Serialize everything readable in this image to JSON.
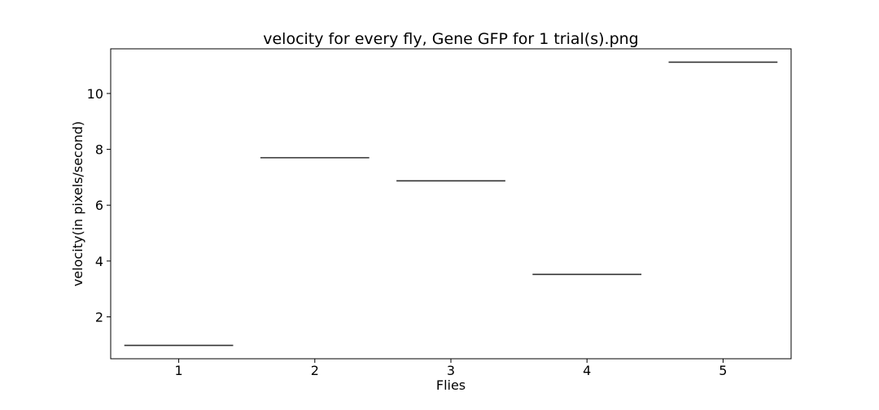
{
  "chart_data": {
    "type": "bar",
    "style": "horizontal segment per category (box-plot median lines)",
    "title": "velocity for every fly, Gene GFP for 1 trial(s).png",
    "xlabel": "Flies",
    "ylabel": "velocity(in pixels/second)",
    "categories": [
      "1",
      "2",
      "3",
      "4",
      "5"
    ],
    "values": [
      0.98,
      7.7,
      6.87,
      3.52,
      11.12
    ],
    "ylim": [
      0.5,
      11.6
    ],
    "yticks": [
      2,
      4,
      6,
      8,
      10
    ],
    "grid": false,
    "legend": "none",
    "colors": {
      "line": "#333333",
      "frame": "#000000",
      "background": "#ffffff"
    }
  }
}
